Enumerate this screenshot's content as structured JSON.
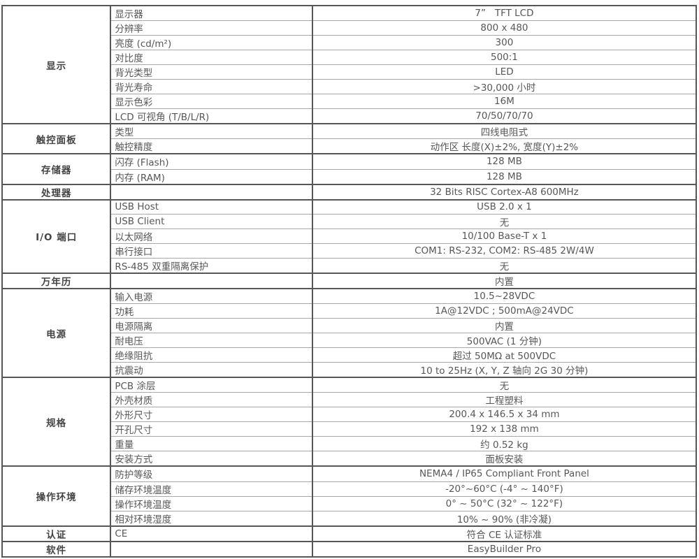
{
  "colors": {
    "border_dark": "#565656",
    "border_light": "#a9a9a9",
    "text": "#575757",
    "background": "#ffffff"
  },
  "table": {
    "sections": [
      {
        "category": "显示",
        "rows": [
          {
            "label": "显示器",
            "value": "7”   TFT LCD"
          },
          {
            "label": "分辨率",
            "value": "800 x 480"
          },
          {
            "label": "亮度 (cd/m²)",
            "value": "300"
          },
          {
            "label": "对比度",
            "value": "500:1"
          },
          {
            "label": "背光类型",
            "value": "LED"
          },
          {
            "label": "背光寿命",
            "value": ">30,000 小时"
          },
          {
            "label": "显示色彩",
            "value": "16M"
          },
          {
            "label": "LCD 可视角 (T/B/L/R)",
            "value": "70/50/70/70"
          }
        ]
      },
      {
        "category": "触控面板",
        "rows": [
          {
            "label": "类型",
            "value": "四线电阻式"
          },
          {
            "label": "触控精度",
            "value": "动作区 长度(X)±2%, 宽度(Y)±2%"
          }
        ]
      },
      {
        "category": "存储器",
        "rows": [
          {
            "label": "闪存 (Flash)",
            "value": "128 MB"
          },
          {
            "label": "内存 (RAM)",
            "value": "128 MB"
          }
        ]
      },
      {
        "category": "处理器",
        "rows": [
          {
            "label": "",
            "value": "32 Bits RISC Cortex-A8 600MHz"
          }
        ]
      },
      {
        "category": "I/O 端口",
        "rows": [
          {
            "label": "USB Host",
            "value": "USB 2.0 x 1"
          },
          {
            "label": "USB Client",
            "value": "无"
          },
          {
            "label": "以太网络",
            "value": "10/100 Base-T x 1"
          },
          {
            "label": "串行接口",
            "value": "COM1: RS-232, COM2: RS-485 2W/4W"
          },
          {
            "label": "RS-485 双重隔离保护",
            "value": "无"
          }
        ]
      },
      {
        "category": "万年历",
        "rows": [
          {
            "label": "",
            "value": "内置"
          }
        ]
      },
      {
        "category": "电源",
        "rows": [
          {
            "label": "输入电源",
            "value": "10.5~28VDC"
          },
          {
            "label": "功耗",
            "value": "1A@12VDC ; 500mA@24VDC"
          },
          {
            "label": "电源隔离",
            "value": "内置"
          },
          {
            "label": "耐电压",
            "value": "500VAC (1 分钟)"
          },
          {
            "label": "绝缘阻抗",
            "value": "超过 50MΩ at 500VDC"
          },
          {
            "label": "抗震动",
            "value": "10 to 25Hz (X, Y, Z 轴向 2G 30 分钟)"
          }
        ]
      },
      {
        "category": "规格",
        "rows": [
          {
            "label": "PCB 涂层",
            "value": "无"
          },
          {
            "label": "外壳材质",
            "value": "工程塑料"
          },
          {
            "label": "外形尺寸",
            "value": "200.4 x 146.5 x 34 mm"
          },
          {
            "label": "开孔尺寸",
            "value": "192 x 138 mm"
          },
          {
            "label": "重量",
            "value": "约 0.52 kg"
          },
          {
            "label": "安装方式",
            "value": "面板安装"
          }
        ]
      },
      {
        "category": "操作环境",
        "rows": [
          {
            "label": "防护等级",
            "value": "NEMA4 / IP65 Compliant Front Panel"
          },
          {
            "label": "储存环境温度",
            "value": "-20°~60°C (-4° ~ 140°F)"
          },
          {
            "label": "操作环境温度",
            "value": "0° ~ 50°C (32° ~ 122°F)"
          },
          {
            "label": "相对环境湿度",
            "value": "10% ~ 90% (非冷凝)"
          }
        ]
      },
      {
        "category": "认证",
        "rows": [
          {
            "label": "CE",
            "value": "符合 CE 认证标准"
          }
        ]
      },
      {
        "category": "软件",
        "rows": [
          {
            "label": "",
            "value": "EasyBuilder Pro"
          }
        ]
      }
    ]
  }
}
